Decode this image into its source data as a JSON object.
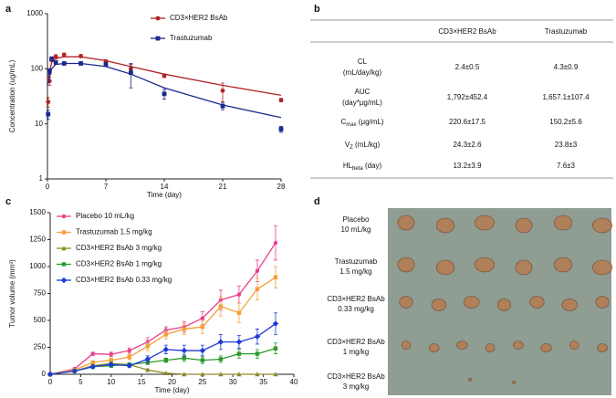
{
  "panels": [
    "a",
    "b",
    "c",
    "d"
  ],
  "chart_data": [
    {
      "type": "scatter",
      "ylabel": "Concentration (ug/mL)",
      "xlabel": "Time (day)",
      "log_y": true,
      "xlim": [
        0,
        28
      ],
      "xticks": [
        0,
        7,
        14,
        21,
        28
      ],
      "ylim": [
        1,
        1000
      ],
      "yticks": [
        1,
        10,
        100,
        1000
      ],
      "legend": "top",
      "series": [
        {
          "name": "CD3×HER2 BsAb",
          "color": "#b22424",
          "marker": "circle",
          "x": [
            0.083,
            0.25,
            0.5,
            1,
            2,
            4,
            7,
            10,
            14,
            21,
            28
          ],
          "values": [
            25,
            60,
            150,
            165,
            180,
            170,
            135,
            100,
            75,
            40,
            27
          ],
          "errors": [
            5,
            10,
            15,
            15,
            12,
            10,
            12,
            20,
            6,
            15,
            2
          ],
          "fit": {
            "x": [
              0,
              0.5,
              1,
              2,
              4,
              7,
              10,
              14,
              21,
              28
            ],
            "values": [
              60,
              130,
              155,
              165,
              165,
              140,
              110,
              80,
              50,
              33
            ]
          }
        },
        {
          "name": "Trastuzumab",
          "color": "#1a2a8c",
          "marker": "square",
          "x": [
            0.083,
            0.25,
            0.5,
            1,
            2,
            4,
            7,
            10,
            14,
            21,
            28
          ],
          "values": [
            15,
            90,
            150,
            130,
            125,
            125,
            120,
            85,
            35,
            21,
            8
          ],
          "errors": [
            3,
            10,
            12,
            10,
            8,
            8,
            10,
            40,
            7,
            3,
            1
          ],
          "fit": {
            "x": [
              0,
              0.5,
              1,
              2,
              4,
              7,
              10,
              14,
              21,
              28
            ],
            "values": [
              50,
              100,
              120,
              125,
              125,
              110,
              80,
              45,
              22,
              13
            ]
          }
        }
      ]
    },
    {
      "type": "line",
      "ylabel": "Tumor volume (mm³)",
      "xlabel": "Time (day)",
      "xlim": [
        0,
        40
      ],
      "xticks": [
        0,
        5,
        10,
        15,
        20,
        25,
        30,
        35,
        40
      ],
      "ylim": [
        0,
        1500
      ],
      "yticks": [
        0,
        250,
        500,
        750,
        1000,
        1250,
        1500
      ],
      "legend": "upper left",
      "x": [
        0,
        4,
        7,
        10,
        13,
        16,
        19,
        22,
        25,
        28,
        31,
        34,
        37
      ],
      "series": [
        {
          "name": "Placebo 10 mL/kg",
          "color": "#e8408c",
          "marker": "circle",
          "values": [
            0,
            50,
            190,
            185,
            220,
            300,
            410,
            440,
            520,
            690,
            740,
            960,
            1220
          ],
          "errors": [
            0,
            8,
            15,
            20,
            25,
            40,
            30,
            50,
            60,
            90,
            80,
            100,
            160
          ]
        },
        {
          "name": "Trastuzumab 1.5 mg/kg",
          "color": "#f2a03a",
          "marker": "square",
          "values": [
            0,
            40,
            110,
            130,
            160,
            260,
            370,
            420,
            440,
            630,
            570,
            790,
            900
          ],
          "errors": [
            0,
            8,
            15,
            20,
            25,
            40,
            40,
            50,
            60,
            90,
            90,
            100,
            100
          ]
        },
        {
          "name": "CD3×HER2 BsAb 3 mg/kg",
          "color": "#8c8a2a",
          "marker": "triangle",
          "values": [
            0,
            30,
            80,
            100,
            90,
            40,
            10,
            0,
            0,
            0,
            0,
            0,
            0
          ],
          "errors": [
            0,
            5,
            10,
            15,
            15,
            10,
            5,
            0,
            0,
            0,
            0,
            0,
            0
          ]
        },
        {
          "name": "CD3×HER2 BsAb 1 mg/kg",
          "color": "#2b9a2b",
          "marker": "square",
          "values": [
            0,
            30,
            70,
            80,
            90,
            110,
            130,
            150,
            130,
            140,
            190,
            190,
            240
          ],
          "errors": [
            0,
            5,
            10,
            15,
            15,
            20,
            20,
            30,
            30,
            30,
            40,
            40,
            50
          ]
        },
        {
          "name": "CD3×HER2 BsAb 0.33 mg/kg",
          "color": "#1e3ad8",
          "marker": "diamond",
          "values": [
            0,
            30,
            70,
            90,
            80,
            140,
            230,
            220,
            220,
            300,
            300,
            350,
            470
          ],
          "errors": [
            0,
            5,
            10,
            15,
            15,
            30,
            40,
            50,
            50,
            70,
            60,
            70,
            100
          ]
        }
      ]
    }
  ],
  "table": {
    "header": [
      "CD3×HER2 BsAb",
      "Trastuzumab"
    ],
    "rows": [
      {
        "label": "CL",
        "unit": "(mL/day/kg)",
        "cells": [
          "2.4±0.5",
          "4.3±0.9"
        ]
      },
      {
        "label": "AUC",
        "unit": "(day*µg/mL)",
        "cells": [
          "1,792±452.4",
          "1,657.1±107.4"
        ]
      },
      {
        "label": "C",
        "sub": "max",
        "unit": "(µg/mL)",
        "cells": [
          "220.6±17.5",
          "150.2±5.6"
        ]
      },
      {
        "label": "V",
        "sub": "Z",
        "unit": "(mL/kg)",
        "cells": [
          "24.3±2.6",
          "23.8±3"
        ]
      },
      {
        "label": "HL",
        "sub": "beta",
        "unit": "(day)",
        "cells": [
          "13.2±3.9",
          "7.6±3"
        ]
      }
    ]
  },
  "photo": {
    "groups": [
      [
        "Placebo",
        "10 mL/kg"
      ],
      [
        "Trastuzumab",
        "1.5 mg/kg"
      ],
      [
        "CD3×HER2 BsAb",
        "0.33 mg/kg"
      ],
      [
        "CD3×HER2 BsAb",
        "1 mg/kg"
      ],
      [
        "CD3×HER2 BsAb",
        "3 mg/kg"
      ]
    ]
  }
}
